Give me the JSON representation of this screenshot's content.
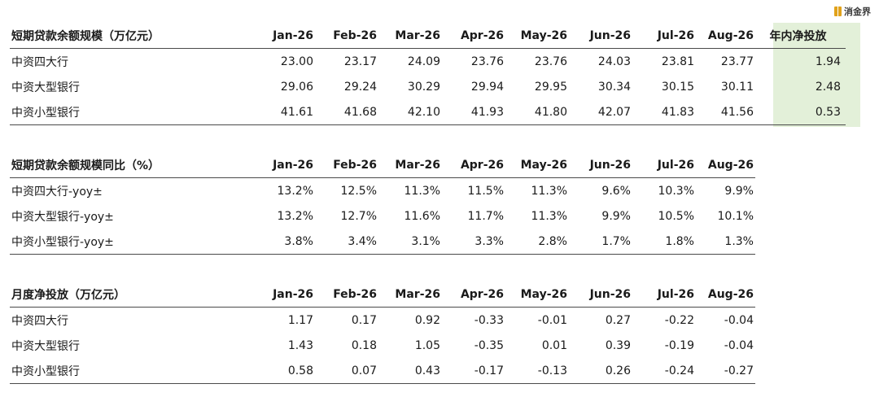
{
  "logo": {
    "text": "消金界"
  },
  "colors": {
    "highlight": "#e3f0d9",
    "rule": "#4a4a4a",
    "logo_accent": "#e1a21b"
  },
  "chart_data": [
    {
      "type": "table",
      "title": "短期贷款余额规模（万亿元）",
      "columns": [
        "Jan-26",
        "Feb-26",
        "Mar-26",
        "Apr-26",
        "May-26",
        "Jun-26",
        "Jul-26",
        "Aug-26"
      ],
      "total_header": "年内净投放",
      "rows": [
        {
          "name": "中资四大行",
          "values": [
            "23.00",
            "23.17",
            "24.09",
            "23.76",
            "23.76",
            "24.03",
            "23.81",
            "23.77"
          ],
          "total": "1.94"
        },
        {
          "name": "中资大型银行",
          "values": [
            "29.06",
            "29.24",
            "30.29",
            "29.94",
            "29.95",
            "30.34",
            "30.15",
            "30.11"
          ],
          "total": "2.48"
        },
        {
          "name": "中资小型银行",
          "values": [
            "41.61",
            "41.68",
            "42.10",
            "41.93",
            "41.80",
            "42.07",
            "41.83",
            "41.56"
          ],
          "total": "0.53"
        }
      ]
    },
    {
      "type": "table",
      "title": "短期贷款余额规模同比（%）",
      "columns": [
        "Jan-26",
        "Feb-26",
        "Mar-26",
        "Apr-26",
        "May-26",
        "Jun-26",
        "Jul-26",
        "Aug-26"
      ],
      "rows": [
        {
          "name": "中资四大行-yoy±",
          "values": [
            "13.2%",
            "12.5%",
            "11.3%",
            "11.5%",
            "11.3%",
            "9.6%",
            "10.3%",
            "9.9%"
          ]
        },
        {
          "name": "中资大型银行-yoy±",
          "values": [
            "13.2%",
            "12.7%",
            "11.6%",
            "11.7%",
            "11.3%",
            "9.9%",
            "10.5%",
            "10.1%"
          ]
        },
        {
          "name": "中资小型银行-yoy±",
          "values": [
            "3.8%",
            "3.4%",
            "3.1%",
            "3.3%",
            "2.8%",
            "1.7%",
            "1.8%",
            "1.3%"
          ]
        }
      ]
    },
    {
      "type": "table",
      "title": "月度净投放（万亿元）",
      "columns": [
        "Jan-26",
        "Feb-26",
        "Mar-26",
        "Apr-26",
        "May-26",
        "Jun-26",
        "Jul-26",
        "Aug-26"
      ],
      "rows": [
        {
          "name": "中资四大行",
          "values": [
            "1.17",
            "0.17",
            "0.92",
            "-0.33",
            "-0.01",
            "0.27",
            "-0.22",
            "-0.04"
          ]
        },
        {
          "name": "中资大型银行",
          "values": [
            "1.43",
            "0.18",
            "1.05",
            "-0.35",
            "0.01",
            "0.39",
            "-0.19",
            "-0.04"
          ]
        },
        {
          "name": "中资小型银行",
          "values": [
            "0.58",
            "0.07",
            "0.43",
            "-0.17",
            "-0.13",
            "0.26",
            "-0.24",
            "-0.27"
          ]
        }
      ]
    }
  ]
}
